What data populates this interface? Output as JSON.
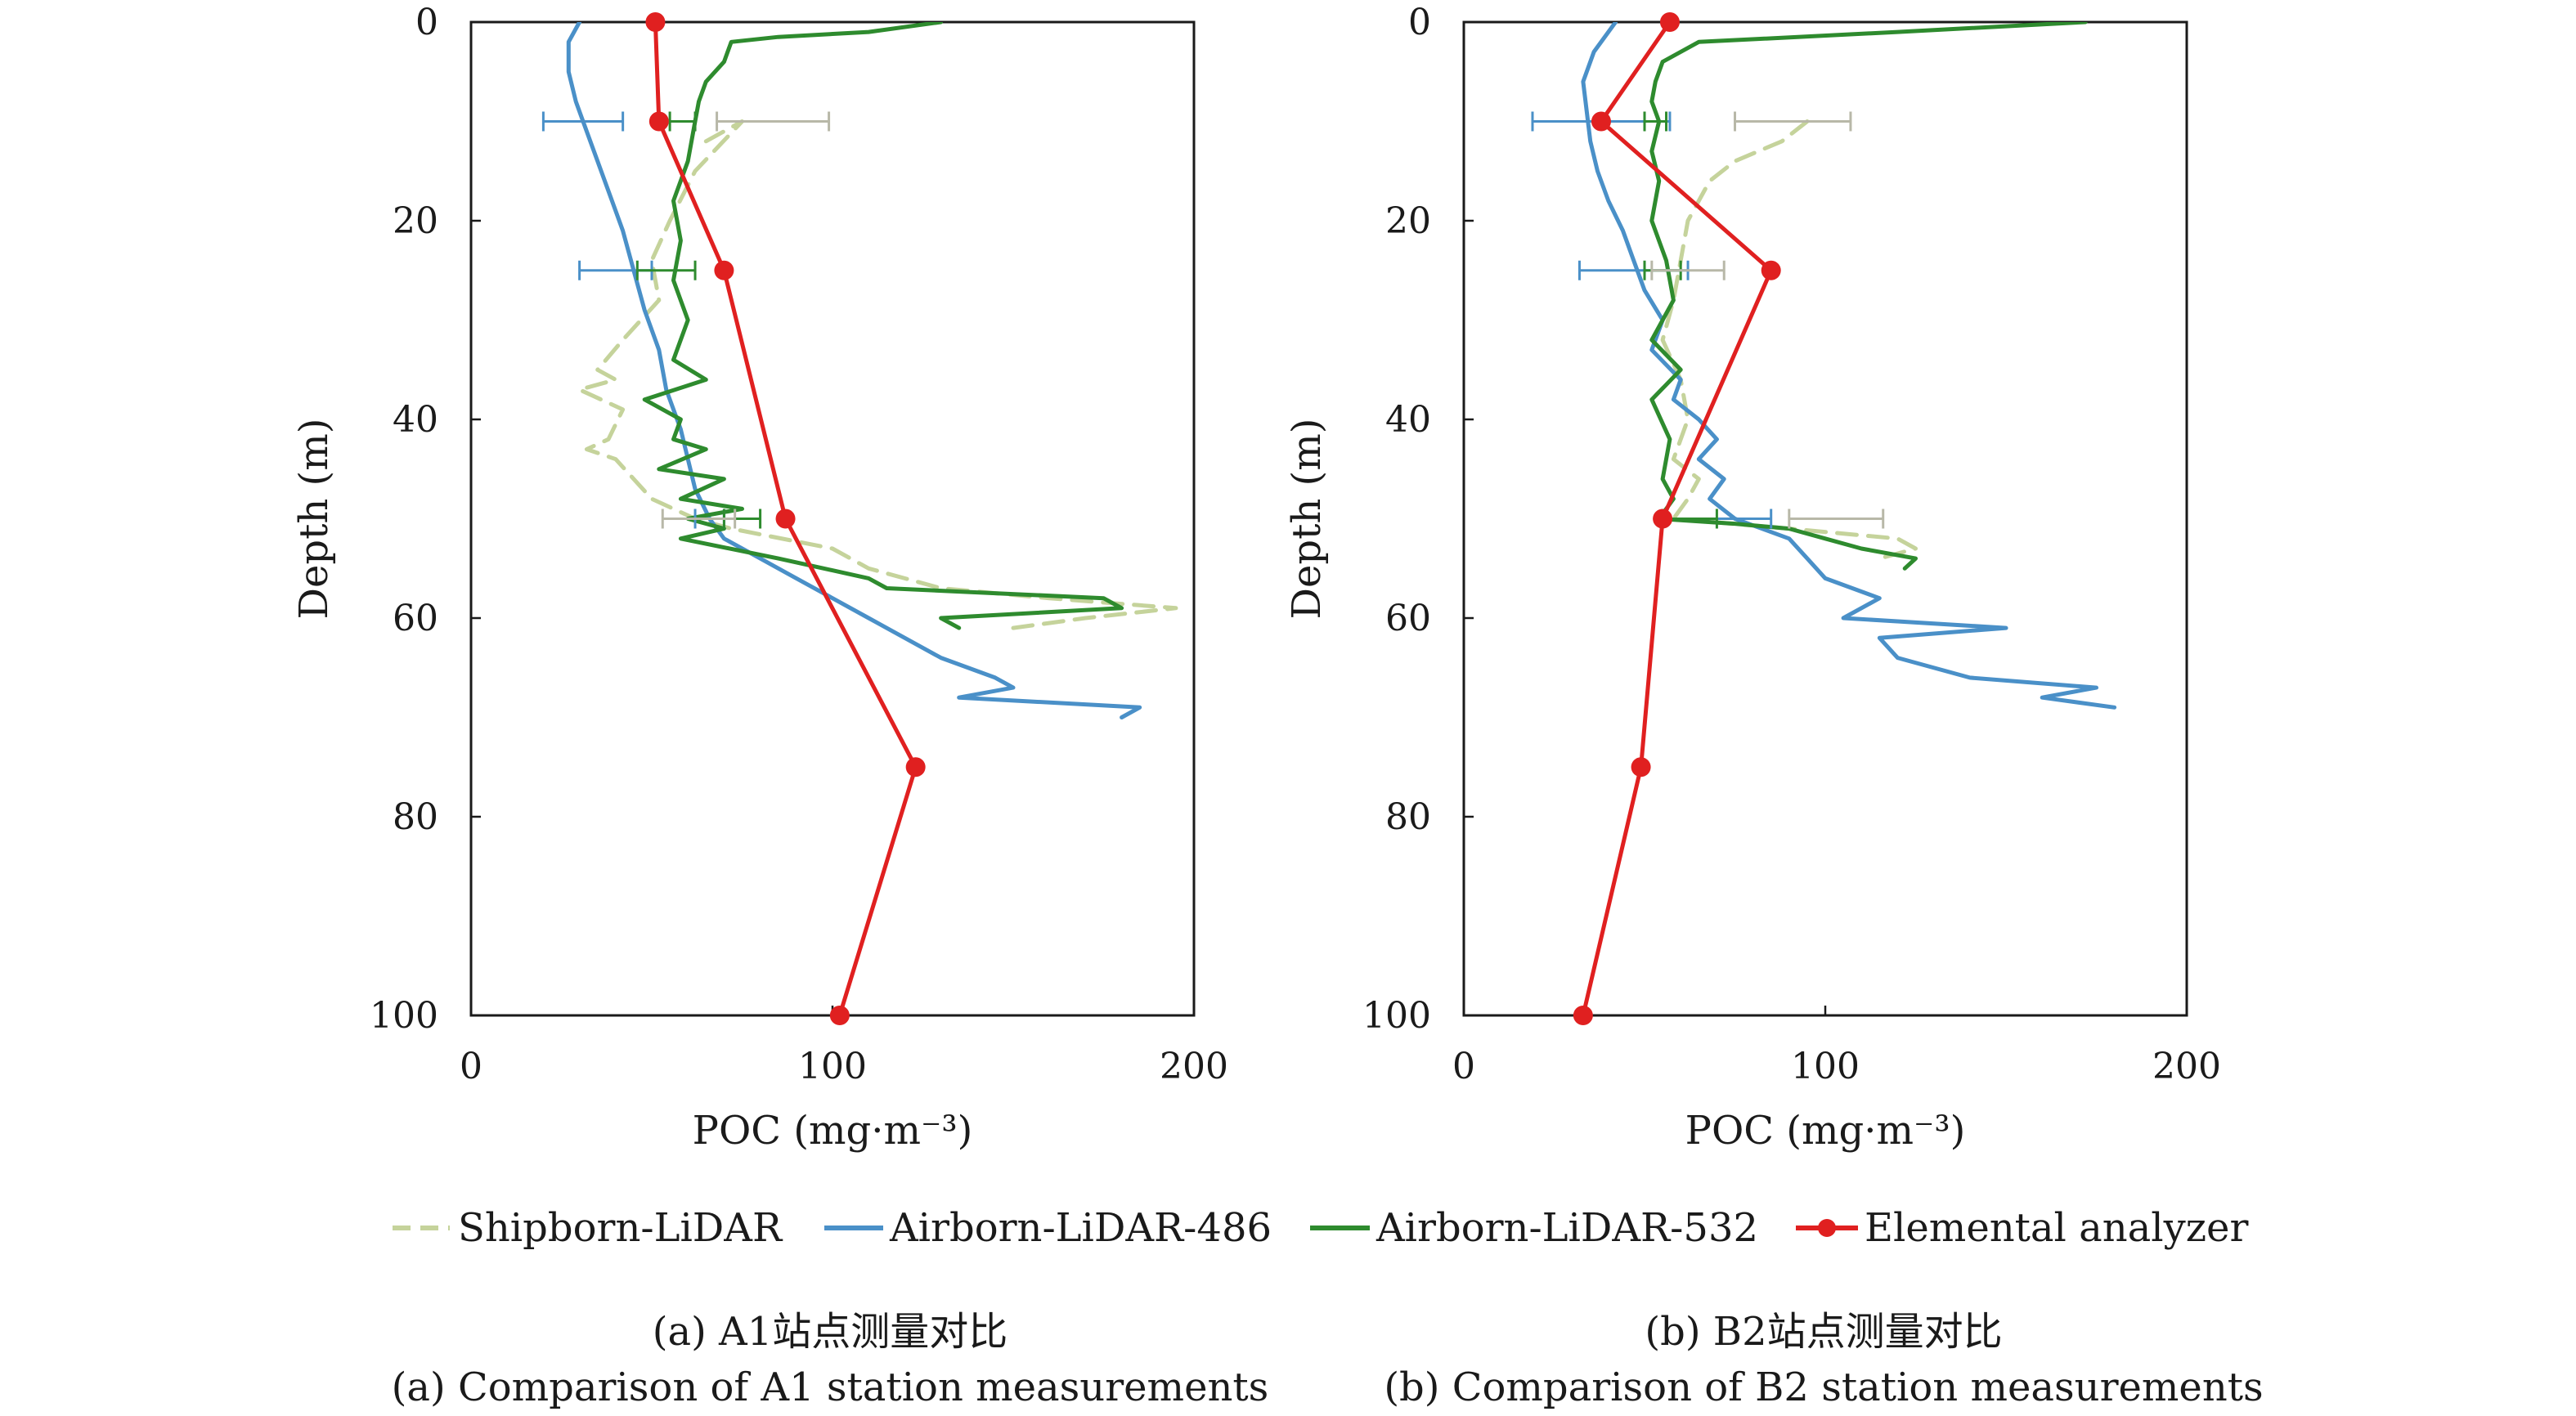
{
  "colors": {
    "shipborn": "#c5d39b",
    "airborne486": "#4a90c8",
    "airborne532": "#2e8b2e",
    "elemental": "#e02020",
    "errorbar_ship": "#b8b8a8",
    "errorbar_486": "#4a90c8",
    "errorbar_532": "#2e8b2e"
  },
  "legend": {
    "shipborn": "Shipborn-LiDAR",
    "airborne486": "Airborn-LiDAR-486",
    "airborne532": "Airborn-LiDAR-532",
    "elemental": "Elemental analyzer"
  },
  "chart_data": [
    {
      "id": "a",
      "type": "line",
      "caption_cn": "(a) A1站点测量对比",
      "caption_en": "(a) Comparison of A1 station measurements",
      "xlabel": "POC (mg·m⁻³)",
      "ylabel": "Depth (m)",
      "xlim": [
        0,
        200
      ],
      "ylim": [
        100,
        0
      ],
      "xticks": [
        "0",
        "100",
        "200"
      ],
      "yticks": [
        "0",
        "20",
        "40",
        "60",
        "80",
        "100"
      ],
      "series": [
        {
          "key": "shipborn",
          "name": "Shipborn-LiDAR",
          "style": "dashed",
          "points": [
            [
              65,
              12
            ],
            [
              75,
              10
            ],
            [
              62,
              15
            ],
            [
              55,
              20
            ],
            [
              50,
              24
            ],
            [
              52,
              28
            ],
            [
              42,
              32
            ],
            [
              35,
              35
            ],
            [
              40,
              36
            ],
            [
              30,
              37
            ],
            [
              42,
              39
            ],
            [
              38,
              42
            ],
            [
              32,
              43
            ],
            [
              40,
              44
            ],
            [
              45,
              46
            ],
            [
              50,
              48
            ],
            [
              62,
              50
            ],
            [
              72,
              51
            ],
            [
              100,
              53
            ],
            [
              110,
              55
            ],
            [
              130,
              57
            ],
            [
              160,
              58
            ],
            [
              195,
              59
            ],
            [
              170,
              60
            ],
            [
              150,
              61
            ]
          ]
        },
        {
          "key": "airborne486",
          "name": "Airborn-LiDAR-486",
          "style": "solid",
          "points": [
            [
              30,
              0
            ],
            [
              27,
              2
            ],
            [
              27,
              5
            ],
            [
              29,
              8
            ],
            [
              31,
              10
            ],
            [
              34,
              13
            ],
            [
              38,
              17
            ],
            [
              42,
              21
            ],
            [
              45,
              25
            ],
            [
              48,
              29
            ],
            [
              52,
              33
            ],
            [
              54,
              37
            ],
            [
              58,
              41
            ],
            [
              60,
              44
            ],
            [
              62,
              47
            ],
            [
              66,
              50
            ],
            [
              70,
              52
            ],
            [
              80,
              54
            ],
            [
              90,
              56
            ],
            [
              100,
              58
            ],
            [
              110,
              60
            ],
            [
              120,
              62
            ],
            [
              130,
              64
            ],
            [
              145,
              66
            ],
            [
              150,
              67
            ],
            [
              135,
              68
            ],
            [
              185,
              69
            ],
            [
              180,
              70
            ]
          ]
        },
        {
          "key": "airborne532",
          "name": "Airborn-LiDAR-532",
          "style": "solid",
          "points": [
            [
              130,
              0
            ],
            [
              110,
              1
            ],
            [
              85,
              1.5
            ],
            [
              72,
              2
            ],
            [
              70,
              4
            ],
            [
              65,
              6
            ],
            [
              63,
              8
            ],
            [
              62,
              10
            ],
            [
              60,
              14
            ],
            [
              56,
              18
            ],
            [
              58,
              22
            ],
            [
              56,
              26
            ],
            [
              60,
              30
            ],
            [
              56,
              34
            ],
            [
              65,
              36
            ],
            [
              48,
              38
            ],
            [
              58,
              40
            ],
            [
              56,
              42
            ],
            [
              65,
              43
            ],
            [
              52,
              45
            ],
            [
              70,
              46
            ],
            [
              58,
              48
            ],
            [
              75,
              49
            ],
            [
              60,
              50
            ],
            [
              70,
              51
            ],
            [
              58,
              52
            ],
            [
              85,
              54
            ],
            [
              110,
              56
            ],
            [
              115,
              57
            ],
            [
              175,
              58
            ],
            [
              180,
              59
            ],
            [
              130,
              60
            ],
            [
              135,
              61
            ]
          ]
        },
        {
          "key": "elemental",
          "name": "Elemental analyzer",
          "style": "solid-markers",
          "points": [
            [
              51,
              0
            ],
            [
              52,
              10
            ],
            [
              70,
              25
            ],
            [
              87,
              50
            ],
            [
              123,
              75
            ],
            [
              102,
              100
            ]
          ]
        }
      ],
      "errorbars": [
        {
          "key": "airborne486",
          "depth": 10,
          "center": 31,
          "low": 20,
          "high": 42
        },
        {
          "key": "airborne532",
          "depth": 10,
          "center": 60,
          "low": 55,
          "high": 62
        },
        {
          "key": "errorbar_ship",
          "depth": 10,
          "center": 83,
          "low": 68,
          "high": 99
        },
        {
          "key": "airborne486",
          "depth": 25,
          "center": 40,
          "low": 30,
          "high": 50
        },
        {
          "key": "airborne532",
          "depth": 25,
          "center": 54,
          "low": 46,
          "high": 62
        },
        {
          "key": "airborne486",
          "depth": 50,
          "center": 66,
          "low": 62,
          "high": 70
        },
        {
          "key": "airborne532",
          "depth": 50,
          "center": 75,
          "low": 70,
          "high": 80
        },
        {
          "key": "errorbar_ship",
          "depth": 50,
          "center": 63,
          "low": 53,
          "high": 73
        }
      ]
    },
    {
      "id": "b",
      "type": "line",
      "caption_cn": "(b) B2站点测量对比",
      "caption_en": "(b) Comparison of B2 station measurements",
      "xlabel": "POC (mg·m⁻³)",
      "ylabel": "Depth (m)",
      "xlim": [
        0,
        200
      ],
      "ylim": [
        100,
        0
      ],
      "xticks": [
        "0",
        "100",
        "200"
      ],
      "yticks": [
        "0",
        "20",
        "40",
        "60",
        "80",
        "100"
      ],
      "series": [
        {
          "key": "shipborn",
          "name": "Shipborn-LiDAR",
          "style": "dashed",
          "points": [
            [
              95,
              10
            ],
            [
              88,
              12
            ],
            [
              75,
              14
            ],
            [
              68,
              16
            ],
            [
              62,
              20
            ],
            [
              60,
              24
            ],
            [
              58,
              28
            ],
            [
              55,
              32
            ],
            [
              60,
              36
            ],
            [
              62,
              40
            ],
            [
              58,
              44
            ],
            [
              65,
              46
            ],
            [
              62,
              48
            ],
            [
              58,
              50
            ],
            [
              90,
              51
            ],
            [
              120,
              52
            ],
            [
              125,
              53
            ],
            [
              115,
              54
            ]
          ]
        },
        {
          "key": "airborne486",
          "name": "Airborn-LiDAR-486",
          "style": "solid",
          "points": [
            [
              42,
              0
            ],
            [
              36,
              3
            ],
            [
              33,
              6
            ],
            [
              34,
              9
            ],
            [
              35,
              12
            ],
            [
              37,
              15
            ],
            [
              40,
              18
            ],
            [
              44,
              21
            ],
            [
              47,
              24
            ],
            [
              50,
              27
            ],
            [
              55,
              30
            ],
            [
              52,
              33
            ],
            [
              60,
              36
            ],
            [
              58,
              38
            ],
            [
              65,
              40
            ],
            [
              70,
              42
            ],
            [
              65,
              44
            ],
            [
              72,
              46
            ],
            [
              68,
              48
            ],
            [
              75,
              50
            ],
            [
              90,
              52
            ],
            [
              95,
              54
            ],
            [
              100,
              56
            ],
            [
              115,
              58
            ],
            [
              105,
              60
            ],
            [
              150,
              61
            ],
            [
              115,
              62
            ],
            [
              120,
              64
            ],
            [
              140,
              66
            ],
            [
              175,
              67
            ],
            [
              160,
              68
            ],
            [
              180,
              69
            ]
          ]
        },
        {
          "key": "airborne532",
          "name": "Airborn-LiDAR-532",
          "style": "solid",
          "points": [
            [
              172,
              0
            ],
            [
              120,
              1
            ],
            [
              65,
              2
            ],
            [
              55,
              4
            ],
            [
              53,
              6
            ],
            [
              52,
              8
            ],
            [
              54,
              10
            ],
            [
              52,
              13
            ],
            [
              54,
              16
            ],
            [
              52,
              20
            ],
            [
              56,
              24
            ],
            [
              58,
              28
            ],
            [
              52,
              32
            ],
            [
              60,
              35
            ],
            [
              52,
              38
            ],
            [
              57,
              42
            ],
            [
              55,
              46
            ],
            [
              58,
              48
            ],
            [
              54,
              50
            ],
            [
              75,
              50.5
            ],
            [
              90,
              51
            ],
            [
              100,
              52
            ],
            [
              110,
              53
            ],
            [
              125,
              54
            ],
            [
              122,
              55
            ]
          ]
        },
        {
          "key": "elemental",
          "name": "Elemental analyzer",
          "style": "solid-markers",
          "points": [
            [
              57,
              0
            ],
            [
              38,
              10
            ],
            [
              85,
              25
            ],
            [
              55,
              50
            ],
            [
              49,
              75
            ],
            [
              33,
              100
            ]
          ]
        }
      ],
      "errorbars": [
        {
          "key": "airborne486",
          "depth": 10,
          "center": 38,
          "low": 19,
          "high": 57
        },
        {
          "key": "airborne532",
          "depth": 10,
          "center": 52,
          "low": 50,
          "high": 56
        },
        {
          "key": "errorbar_ship",
          "depth": 10,
          "center": 91,
          "low": 75,
          "high": 107
        },
        {
          "key": "airborne486",
          "depth": 25,
          "center": 47,
          "low": 32,
          "high": 62
        },
        {
          "key": "airborne532",
          "depth": 25,
          "center": 55,
          "low": 50,
          "high": 60
        },
        {
          "key": "errorbar_ship",
          "depth": 25,
          "center": 62,
          "low": 52,
          "high": 72
        },
        {
          "key": "airborne486",
          "depth": 50,
          "center": 70,
          "low": 55,
          "high": 85
        },
        {
          "key": "airborne532",
          "depth": 50,
          "center": 62,
          "low": 55,
          "high": 70
        },
        {
          "key": "errorbar_ship",
          "depth": 50,
          "center": 103,
          "low": 90,
          "high": 116
        }
      ]
    }
  ]
}
